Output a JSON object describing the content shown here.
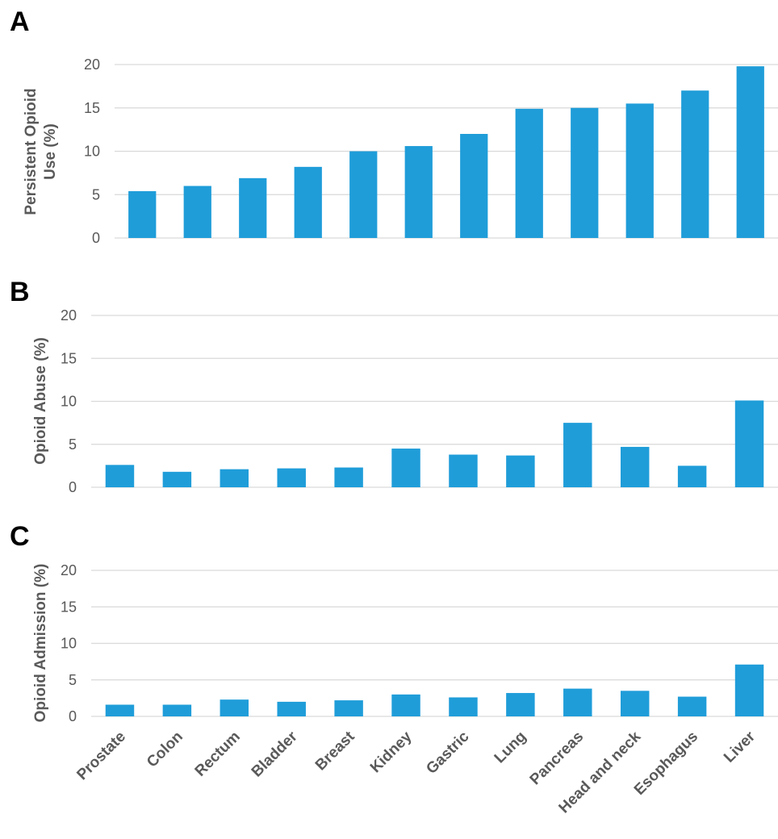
{
  "colors": {
    "bar": "#1f9dd9",
    "grid": "#d9d9d9",
    "text": "#595959"
  },
  "chart_data": [
    {
      "panel": "A",
      "type": "bar",
      "ylabel": [
        "Persistent Opioid",
        "Use (%)"
      ],
      "ylim": [
        0,
        20
      ],
      "yticks": [
        "0",
        "5",
        "10",
        "15",
        "20"
      ],
      "grid": true,
      "categories": [
        "Prostate",
        "Colon",
        "Rectum",
        "Bladder",
        "Breast",
        "Kidney",
        "Gastric",
        "Lung",
        "Pancreas",
        "Head and neck",
        "Esophagus",
        "Liver"
      ],
      "values": [
        5.4,
        6.0,
        6.9,
        8.2,
        10.0,
        10.6,
        12.0,
        14.9,
        15.0,
        15.5,
        17.0,
        19.8
      ]
    },
    {
      "panel": "B",
      "type": "bar",
      "ylabel": [
        "Opioid Abuse (%)"
      ],
      "ylim": [
        0,
        20
      ],
      "yticks": [
        "0",
        "5",
        "10",
        "15",
        "20"
      ],
      "grid": true,
      "categories": [
        "Prostate",
        "Colon",
        "Rectum",
        "Bladder",
        "Breast",
        "Kidney",
        "Gastric",
        "Lung",
        "Pancreas",
        "Head and neck",
        "Esophagus",
        "Liver"
      ],
      "values": [
        2.6,
        1.8,
        2.1,
        2.2,
        2.3,
        4.5,
        3.8,
        3.7,
        7.5,
        4.7,
        2.5,
        10.1
      ]
    },
    {
      "panel": "C",
      "type": "bar",
      "ylabel": [
        "Opioid Admission (%)"
      ],
      "ylim": [
        0,
        20
      ],
      "yticks": [
        "0",
        "5",
        "10",
        "15",
        "20"
      ],
      "grid": true,
      "categories": [
        "Prostate",
        "Colon",
        "Rectum",
        "Bladder",
        "Breast",
        "Kidney",
        "Gastric",
        "Lung",
        "Pancreas",
        "Head and neck",
        "Esophagus",
        "Liver"
      ],
      "values": [
        1.6,
        1.6,
        2.3,
        2.0,
        2.2,
        3.0,
        2.6,
        3.2,
        3.8,
        3.5,
        2.7,
        7.1
      ]
    }
  ]
}
